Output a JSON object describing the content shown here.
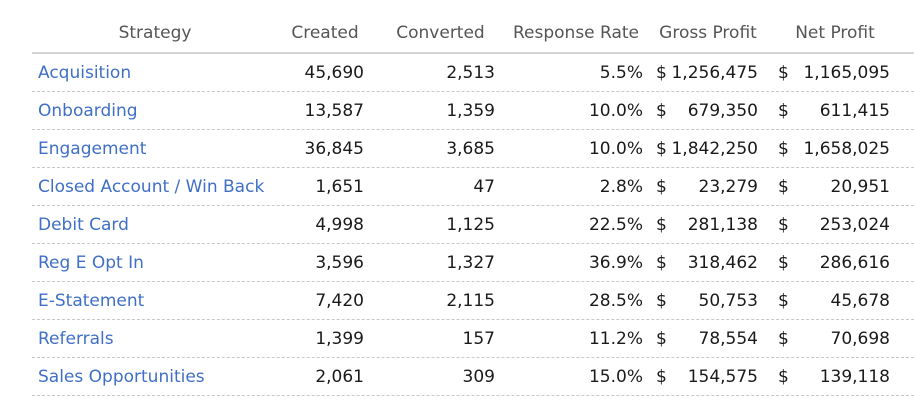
{
  "table": {
    "headers": {
      "strategy": "Strategy",
      "created": "Created",
      "converted": "Converted",
      "response_rate": "Response Rate",
      "gross_profit": "Gross Profit",
      "net_profit": "Net Profit"
    },
    "currency_symbol": "$",
    "rows": [
      {
        "strategy": "Acquisition",
        "created": "45,690",
        "converted": "2,513",
        "response_rate": "5.5%",
        "gross_profit": "1,256,475",
        "net_profit": "1,165,095"
      },
      {
        "strategy": "Onboarding",
        "created": "13,587",
        "converted": "1,359",
        "response_rate": "10.0%",
        "gross_profit": "679,350",
        "net_profit": "611,415"
      },
      {
        "strategy": "Engagement",
        "created": "36,845",
        "converted": "3,685",
        "response_rate": "10.0%",
        "gross_profit": "1,842,250",
        "net_profit": "1,658,025"
      },
      {
        "strategy": "Closed Account / Win Back",
        "created": "1,651",
        "converted": "47",
        "response_rate": "2.8%",
        "gross_profit": "23,279",
        "net_profit": "20,951"
      },
      {
        "strategy": "Debit Card",
        "created": "4,998",
        "converted": "1,125",
        "response_rate": "22.5%",
        "gross_profit": "281,138",
        "net_profit": "253,024"
      },
      {
        "strategy": "Reg E Opt In",
        "created": "3,596",
        "converted": "1,327",
        "response_rate": "36.9%",
        "gross_profit": "318,462",
        "net_profit": "286,616"
      },
      {
        "strategy": "E-Statement",
        "created": "7,420",
        "converted": "2,115",
        "response_rate": "28.5%",
        "gross_profit": "50,753",
        "net_profit": "45,678"
      },
      {
        "strategy": "Referrals",
        "created": "1,399",
        "converted": "157",
        "response_rate": "11.2%",
        "gross_profit": "78,554",
        "net_profit": "70,698"
      },
      {
        "strategy": "Sales Opportunities",
        "created": "2,061",
        "converted": "309",
        "response_rate": "15.0%",
        "gross_profit": "154,575",
        "net_profit": "139,118"
      }
    ]
  },
  "colors": {
    "link": "#3f6fc6",
    "header_text": "#555555",
    "divider": "#d4d4d4"
  }
}
